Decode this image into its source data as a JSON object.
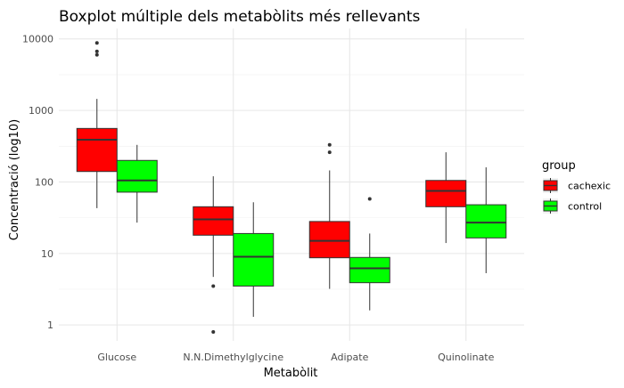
{
  "chart_data": {
    "type": "boxplot",
    "title": "Boxplot múltiple dels metabòlits més rellevants",
    "xlabel": "Metabòlit",
    "ylabel": "Concentració (log10)",
    "y_scale": "log10",
    "ylim": [
      0.6,
      14000
    ],
    "y_ticks": [
      {
        "value": 1,
        "label": "1"
      },
      {
        "value": 10,
        "label": "10"
      },
      {
        "value": 100,
        "label": "100"
      },
      {
        "value": 1000,
        "label": "1000"
      },
      {
        "value": 10000,
        "label": "10000"
      }
    ],
    "grid": true,
    "legend_title": "group",
    "legend_position": "right",
    "categories": [
      "Glucose",
      "N.N.Dimethylglycine",
      "Adipate",
      "Quinolinate"
    ],
    "series": [
      {
        "name": "cachexic",
        "color": "#ff0000",
        "boxes": [
          {
            "whisker_low": 43,
            "q1": 140,
            "median": 390,
            "q3": 560,
            "whisker_high": 1450,
            "outliers": [
              6000,
              6700,
              8800
            ]
          },
          {
            "whisker_low": 4.7,
            "q1": 18,
            "median": 30,
            "q3": 45,
            "whisker_high": 120,
            "outliers": [
              3.5,
              0.8
            ]
          },
          {
            "whisker_low": 3.2,
            "q1": 8.7,
            "median": 15,
            "q3": 28,
            "whisker_high": 145,
            "outliers": [
              260,
              330
            ]
          },
          {
            "whisker_low": 14,
            "q1": 45,
            "median": 75,
            "q3": 105,
            "whisker_high": 260,
            "outliers": []
          }
        ]
      },
      {
        "name": "control",
        "color": "#00ff00",
        "boxes": [
          {
            "whisker_low": 27,
            "q1": 72,
            "median": 105,
            "q3": 200,
            "whisker_high": 330,
            "outliers": []
          },
          {
            "whisker_low": 1.3,
            "q1": 3.5,
            "median": 9,
            "q3": 19,
            "whisker_high": 52,
            "outliers": []
          },
          {
            "whisker_low": 1.6,
            "q1": 3.9,
            "median": 6.2,
            "q3": 8.8,
            "whisker_high": 19,
            "outliers": [
              58
            ]
          },
          {
            "whisker_low": 5.3,
            "q1": 16.5,
            "median": 27,
            "q3": 48,
            "whisker_high": 160,
            "outliers": []
          }
        ]
      }
    ]
  }
}
